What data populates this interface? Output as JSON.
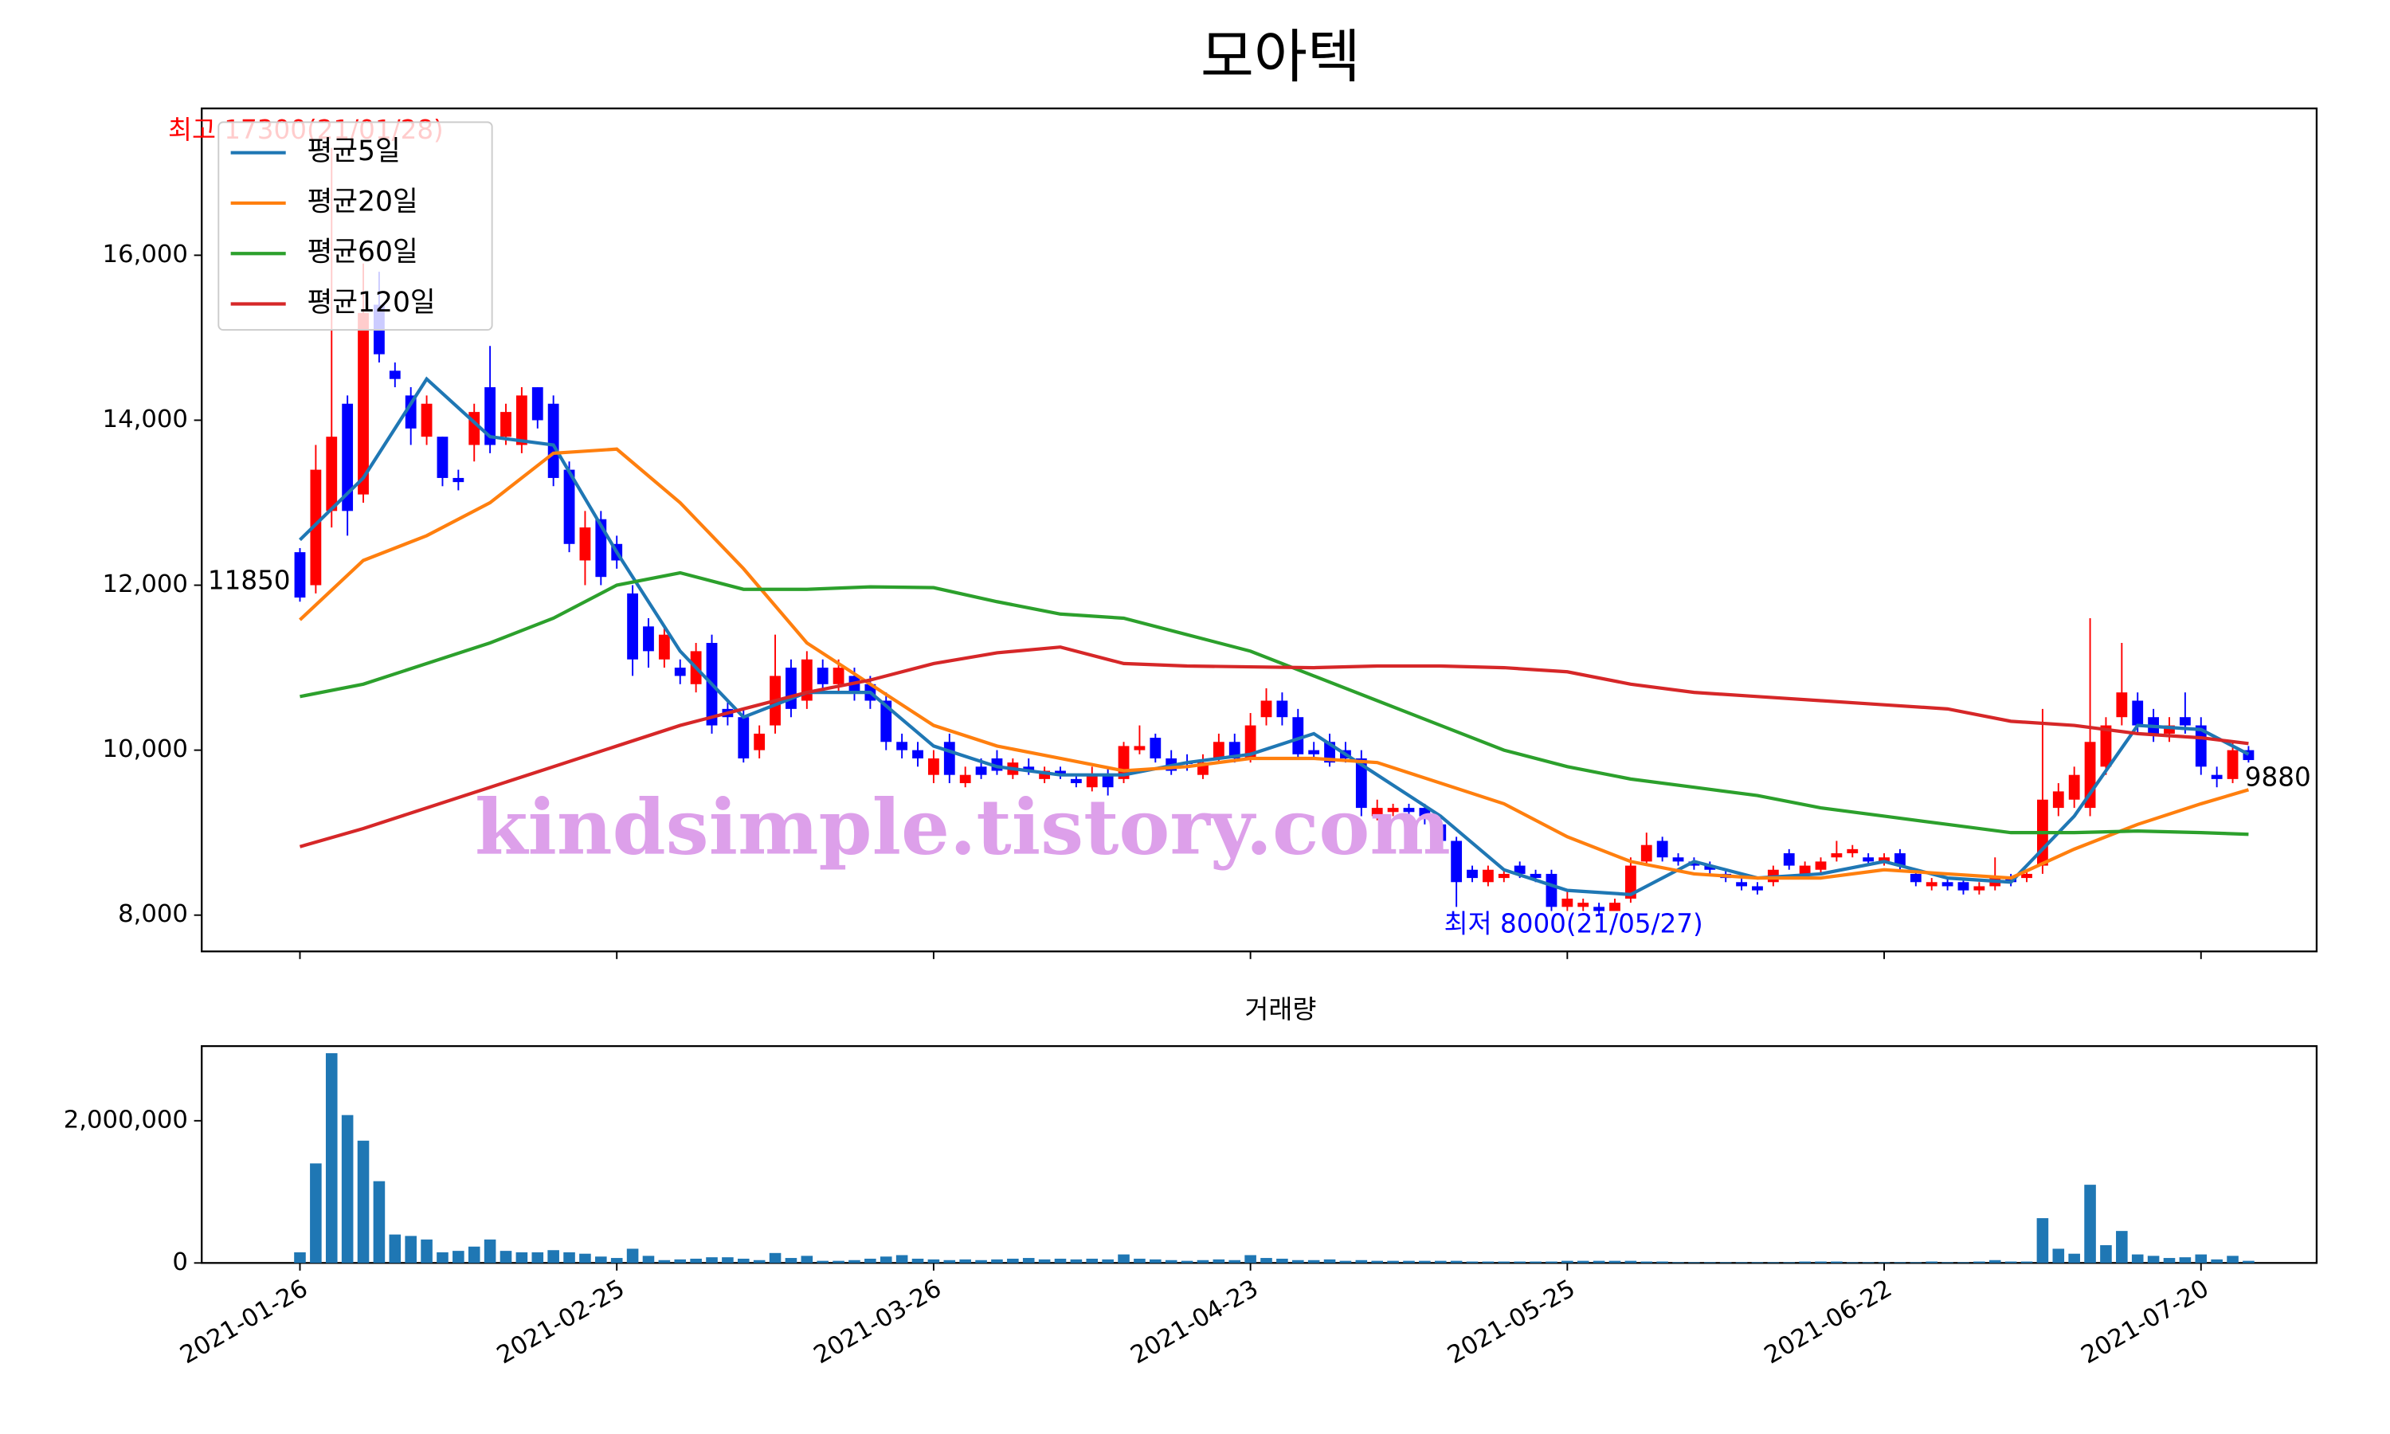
{
  "chart_data": {
    "type": "candlestick",
    "title": "모아텍",
    "volume_title": "거래량",
    "watermark": "kindsimple.tistory.com",
    "up_color": "#ff0000",
    "down_color": "#0000ff",
    "volume_color": "#1f77b4",
    "legend": "upper left",
    "grid": false,
    "xlim": [
      -6.2,
      127.3
    ],
    "xticks": [
      {
        "value": 0,
        "label": "2021-01-26"
      },
      {
        "value": 20,
        "label": "2021-02-25"
      },
      {
        "value": 40,
        "label": "2021-03-26"
      },
      {
        "value": 60,
        "label": "2021-04-23"
      },
      {
        "value": 80,
        "label": "2021-05-25"
      },
      {
        "value": 100,
        "label": "2021-06-22"
      },
      {
        "value": 120,
        "label": "2021-07-20"
      }
    ],
    "ylim": [
      7560,
      17780
    ],
    "yticks": [
      {
        "value": 8000,
        "label": "8,000"
      },
      {
        "value": 10000,
        "label": "10,000"
      },
      {
        "value": 12000,
        "label": "12,000"
      },
      {
        "value": 14000,
        "label": "14,000"
      },
      {
        "value": 16000,
        "label": "16,000"
      }
    ],
    "volume_ylim": [
      0,
      3050000
    ],
    "volume_yticks": [
      0,
      {
        "value": 2000000,
        "label": "2,000,000"
      }
    ],
    "open": [
      12400,
      12000,
      12900,
      14200,
      13100,
      15400,
      14600,
      14300,
      13800,
      13800,
      13300,
      13700,
      14400,
      13800,
      13700,
      14400,
      14200,
      13400,
      12300,
      12800,
      12500,
      11900,
      11500,
      11100,
      11000,
      10800,
      11300,
      10500,
      10400,
      10000,
      10300,
      11000,
      10600,
      11000,
      10800,
      10900,
      10800,
      10600,
      10100,
      10000,
      9700,
      10100,
      9600,
      9800,
      9900,
      9700,
      9800,
      9650,
      9750,
      9650,
      9550,
      9700,
      9650,
      10000,
      10150,
      9900,
      9850,
      9700,
      9900,
      10100,
      9900,
      10400,
      10600,
      10400,
      10000,
      10100,
      10000,
      9900,
      9200,
      9250,
      9300,
      9300,
      9100,
      8900,
      8550,
      8400,
      8450,
      8600,
      8500,
      8500,
      8100,
      8100,
      8100,
      8050,
      8200,
      8650,
      8900,
      8700,
      8650,
      8600,
      8500,
      8400,
      8350,
      8400,
      8750,
      8500,
      8550,
      8700,
      8750,
      8700,
      8650,
      8750,
      8500,
      8350,
      8400,
      8400,
      8300,
      8350,
      8450,
      8450,
      8600,
      9300,
      9400,
      9300,
      9800,
      10400,
      10600,
      10400,
      10200,
      10400,
      10300,
      9700,
      9650,
      10000
    ],
    "high": [
      12450,
      13700,
      17300,
      14300,
      15900,
      15800,
      14700,
      14400,
      14300,
      13800,
      13400,
      14200,
      14900,
      14200,
      14400,
      14400,
      14300,
      13500,
      12900,
      12900,
      12600,
      12000,
      11600,
      11500,
      11100,
      11300,
      11400,
      10600,
      10500,
      10300,
      11400,
      11100,
      11200,
      11100,
      11100,
      11000,
      10900,
      10700,
      10200,
      10100,
      10000,
      10200,
      9800,
      9900,
      10000,
      9900,
      9900,
      9800,
      9800,
      9700,
      9800,
      9800,
      10100,
      10300,
      10200,
      10000,
      9950,
      9950,
      10200,
      10200,
      10450,
      10750,
      10700,
      10500,
      10100,
      10200,
      10100,
      10000,
      9400,
      9350,
      9350,
      9350,
      9200,
      8950,
      8600,
      8600,
      8550,
      8650,
      8550,
      8550,
      8300,
      8200,
      8150,
      8200,
      8700,
      9000,
      8950,
      8750,
      8700,
      8650,
      8550,
      8450,
      8400,
      8600,
      8800,
      8650,
      8700,
      8900,
      8850,
      8750,
      8750,
      8800,
      8550,
      8450,
      8450,
      8450,
      8400,
      8700,
      8500,
      8550,
      10500,
      9600,
      9800,
      11600,
      10400,
      11300,
      10700,
      10500,
      10400,
      10700,
      10400,
      9800,
      10100,
      10050
    ],
    "low": [
      11800,
      11900,
      12700,
      12600,
      13000,
      14700,
      14400,
      13700,
      13700,
      13200,
      13150,
      13500,
      13600,
      13700,
      13600,
      13900,
      13200,
      12400,
      12000,
      12000,
      12200,
      10900,
      11000,
      11000,
      10800,
      10700,
      10200,
      10300,
      9850,
      9900,
      10200,
      10400,
      10500,
      10700,
      10700,
      10600,
      10500,
      10000,
      9900,
      9800,
      9600,
      9600,
      9550,
      9650,
      9700,
      9650,
      9700,
      9600,
      9650,
      9550,
      9500,
      9450,
      9600,
      9950,
      9850,
      9700,
      9750,
      9650,
      9850,
      9850,
      9850,
      10300,
      10300,
      9900,
      9900,
      9800,
      9850,
      9200,
      9150,
      9200,
      9200,
      9100,
      8850,
      8100,
      8400,
      8350,
      8400,
      8450,
      8400,
      8050,
      8050,
      8050,
      8000,
      8050,
      8150,
      8600,
      8650,
      8600,
      8550,
      8500,
      8400,
      8300,
      8250,
      8350,
      8550,
      8450,
      8500,
      8650,
      8700,
      8600,
      8600,
      8550,
      8350,
      8300,
      8300,
      8250,
      8250,
      8300,
      8350,
      8400,
      8500,
      9200,
      9300,
      9200,
      9700,
      10300,
      10200,
      10100,
      10100,
      10200,
      9700,
      9550,
      9600,
      9850
    ],
    "close": [
      11850,
      13400,
      13800,
      12900,
      15300,
      14800,
      14500,
      13900,
      14200,
      13300,
      13250,
      14100,
      13700,
      14100,
      14300,
      14000,
      13300,
      12500,
      12700,
      12100,
      12300,
      11100,
      11200,
      11400,
      10900,
      11200,
      10300,
      10400,
      9900,
      10200,
      10900,
      10500,
      11100,
      10800,
      11000,
      10700,
      10600,
      10100,
      10000,
      9900,
      9900,
      9700,
      9700,
      9700,
      9750,
      9850,
      9750,
      9750,
      9700,
      9600,
      9700,
      9550,
      10050,
      10050,
      9900,
      9750,
      9850,
      9850,
      10100,
      9900,
      10300,
      10600,
      10400,
      9950,
      9950,
      9850,
      9900,
      9300,
      9300,
      9300,
      9250,
      9200,
      8900,
      8400,
      8450,
      8550,
      8500,
      8500,
      8450,
      8100,
      8200,
      8150,
      8050,
      8150,
      8600,
      8850,
      8700,
      8650,
      8600,
      8550,
      8450,
      8350,
      8300,
      8550,
      8600,
      8600,
      8650,
      8750,
      8800,
      8650,
      8700,
      8600,
      8400,
      8400,
      8350,
      8300,
      8350,
      8450,
      8400,
      8500,
      9400,
      9500,
      9700,
      10100,
      10300,
      10700,
      10300,
      10200,
      10300,
      10300,
      9800,
      9650,
      10000,
      9880
    ],
    "volume": [
      150000,
      1400000,
      2950000,
      2080000,
      1720000,
      1150000,
      400000,
      380000,
      330000,
      150000,
      170000,
      230000,
      330000,
      170000,
      150000,
      150000,
      180000,
      150000,
      130000,
      90000,
      70000,
      200000,
      100000,
      40000,
      50000,
      60000,
      80000,
      80000,
      60000,
      40000,
      140000,
      70000,
      100000,
      30000,
      30000,
      40000,
      60000,
      90000,
      110000,
      60000,
      50000,
      40000,
      50000,
      40000,
      50000,
      60000,
      70000,
      50000,
      60000,
      50000,
      60000,
      50000,
      120000,
      60000,
      50000,
      40000,
      30000,
      40000,
      50000,
      40000,
      110000,
      70000,
      60000,
      40000,
      40000,
      50000,
      30000,
      40000,
      30000,
      30000,
      30000,
      30000,
      30000,
      30000,
      20000,
      20000,
      20000,
      20000,
      20000,
      20000,
      30000,
      30000,
      30000,
      30000,
      30000,
      20000,
      20000,
      10000,
      10000,
      10000,
      10000,
      10000,
      10000,
      10000,
      10000,
      20000,
      20000,
      20000,
      10000,
      10000,
      10000,
      10000,
      10000,
      20000,
      10000,
      10000,
      20000,
      40000,
      20000,
      20000,
      630000,
      200000,
      130000,
      1100000,
      250000,
      450000,
      120000,
      100000,
      70000,
      80000,
      120000,
      50000,
      100000,
      30000
    ],
    "series": [
      {
        "name": "평균5일",
        "color": "#1f77b4",
        "x": [
          0,
          4,
          8,
          12,
          16,
          20,
          24,
          28,
          32,
          36,
          40,
          44,
          48,
          52,
          56,
          60,
          64,
          68,
          72,
          76,
          80,
          84,
          88,
          92,
          96,
          100,
          104,
          108,
          112,
          116,
          120,
          123
        ],
        "values": [
          12550,
          13300,
          14500,
          13800,
          13700,
          12400,
          11200,
          10400,
          10700,
          10700,
          10050,
          9800,
          9700,
          9700,
          9850,
          9950,
          10200,
          9700,
          9200,
          8550,
          8300,
          8250,
          8650,
          8450,
          8500,
          8650,
          8450,
          8400,
          9200,
          10300,
          10250,
          9950
        ]
      },
      {
        "name": "평균20일",
        "color": "#ff7f0e",
        "x": [
          0,
          4,
          8,
          12,
          16,
          20,
          24,
          28,
          32,
          36,
          40,
          44,
          48,
          52,
          56,
          60,
          64,
          68,
          72,
          76,
          80,
          84,
          88,
          92,
          96,
          100,
          104,
          108,
          112,
          116,
          120,
          123
        ],
        "values": [
          11580,
          12300,
          12600,
          13000,
          13600,
          13650,
          13000,
          12200,
          11300,
          10800,
          10300,
          10050,
          9900,
          9750,
          9800,
          9900,
          9900,
          9850,
          9600,
          9350,
          8950,
          8650,
          8500,
          8450,
          8450,
          8550,
          8500,
          8450,
          8800,
          9100,
          9350,
          9520
        ]
      },
      {
        "name": "평균60일",
        "color": "#2ca02c",
        "x": [
          0,
          4,
          8,
          12,
          16,
          20,
          24,
          28,
          32,
          36,
          40,
          44,
          48,
          52,
          56,
          60,
          64,
          68,
          72,
          76,
          80,
          84,
          88,
          92,
          96,
          100,
          104,
          108,
          112,
          116,
          120,
          123
        ],
        "values": [
          10650,
          10800,
          11050,
          11300,
          11600,
          12000,
          12150,
          11950,
          11950,
          11980,
          11970,
          11800,
          11650,
          11600,
          11400,
          11200,
          10900,
          10600,
          10300,
          10000,
          9800,
          9650,
          9550,
          9450,
          9300,
          9200,
          9100,
          9000,
          9000,
          9020,
          9000,
          8980
        ]
      },
      {
        "name": "평균120일",
        "color": "#d62728",
        "x": [
          0,
          4,
          8,
          12,
          16,
          20,
          24,
          28,
          32,
          36,
          40,
          44,
          48,
          52,
          56,
          60,
          64,
          68,
          72,
          76,
          80,
          84,
          88,
          92,
          96,
          100,
          104,
          108,
          112,
          116,
          120,
          123
        ],
        "values": [
          8830,
          9050,
          9300,
          9550,
          9800,
          10050,
          10300,
          10500,
          10700,
          10850,
          11050,
          11180,
          11250,
          11050,
          11020,
          11010,
          11000,
          11020,
          11020,
          11000,
          10950,
          10800,
          10700,
          10650,
          10600,
          10550,
          10500,
          10350,
          10300,
          10200,
          10150,
          10080
        ]
      }
    ],
    "annotations": [
      {
        "text": "최고 17300(21/01/28)",
        "color": "#ff0000"
      },
      {
        "text": "최저 8000(21/05/27)",
        "color": "#0000ff"
      },
      {
        "text": "11850",
        "color": "#000000"
      },
      {
        "text": "9880",
        "color": "#000000"
      }
    ]
  }
}
